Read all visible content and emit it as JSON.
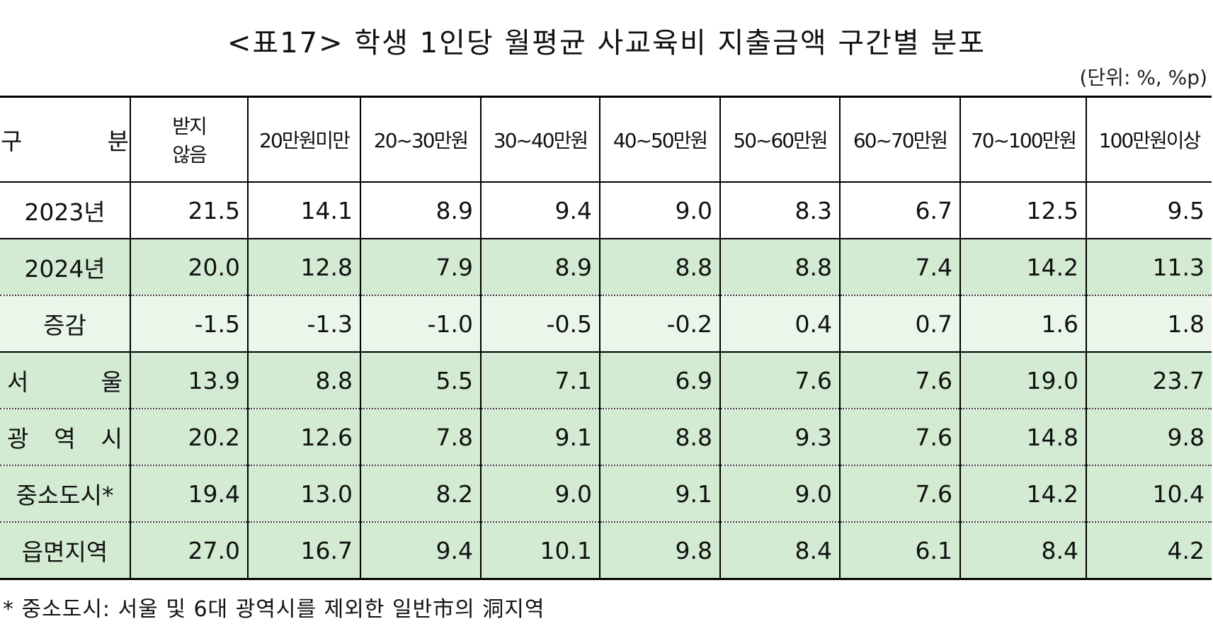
{
  "title": "<표17> 학생 1인당 월평균 사교육비 지출금액 구간별 분포",
  "unit": "(단위: %, %p)",
  "table": {
    "header": [
      "구 분",
      "받지\n않음",
      "20만원미만",
      "20~30만원",
      "30~40만원",
      "40~50만원",
      "50~60만원",
      "60~70만원",
      "70~100만원",
      "100만원이상"
    ],
    "rows": [
      [
        "2023년",
        "21.5",
        "14.1",
        "8.9",
        "9.4",
        "9.0",
        "8.3",
        "6.7",
        "12.5",
        "9.5"
      ],
      [
        "2024년",
        "20.0",
        "12.8",
        "7.9",
        "8.9",
        "8.8",
        "8.8",
        "7.4",
        "14.2",
        "11.3"
      ],
      [
        "증감",
        "-1.5",
        "-1.3",
        "-1.0",
        "-0.5",
        "-0.2",
        "0.4",
        "0.7",
        "1.6",
        "1.8"
      ],
      [
        "서 울",
        "13.9",
        "8.8",
        "5.5",
        "7.1",
        "6.9",
        "7.6",
        "7.6",
        "19.0",
        "23.7"
      ],
      [
        "광 역 시",
        "20.2",
        "12.6",
        "7.8",
        "9.1",
        "8.8",
        "9.3",
        "7.6",
        "14.8",
        "9.8"
      ],
      [
        "중소도시*",
        "19.4",
        "13.0",
        "8.2",
        "9.0",
        "9.1",
        "9.0",
        "7.6",
        "14.2",
        "10.4"
      ],
      [
        "읍면지역",
        "27.0",
        "16.7",
        "9.4",
        "10.1",
        "9.8",
        "8.4",
        "6.1",
        "8.4",
        "4.2"
      ]
    ]
  },
  "footnote": "* 중소도시: 서울 및 6대 광역시를 제외한 일반市의 洞지역"
}
